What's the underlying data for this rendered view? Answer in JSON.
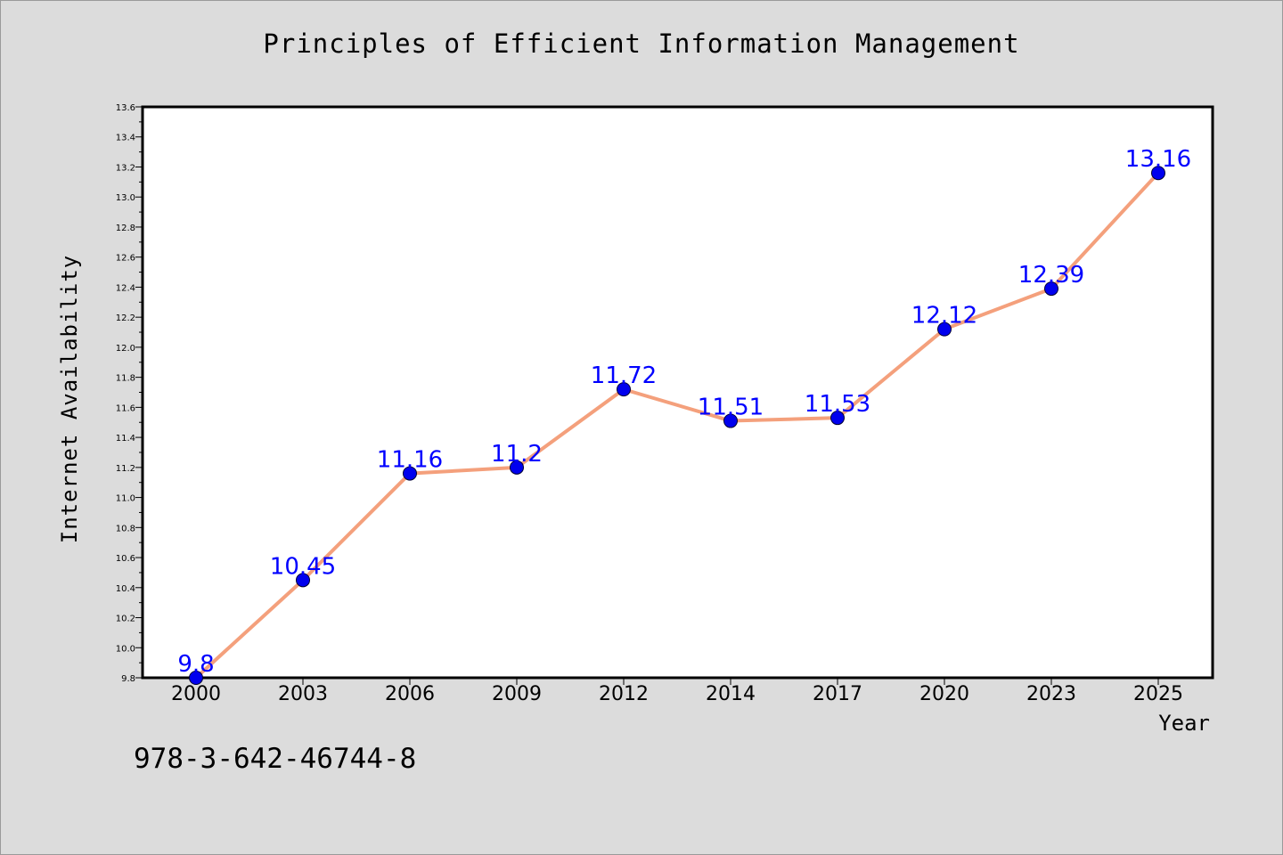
{
  "chart_data": {
    "type": "line",
    "title": "Principles of Efficient Information Management",
    "xlabel": "Year",
    "ylabel": "Internet Availability",
    "categories": [
      "2000",
      "2003",
      "2006",
      "2009",
      "2012",
      "2014",
      "2017",
      "2020",
      "2023",
      "2025"
    ],
    "series": [
      {
        "values": [
          9.8,
          10.45,
          11.16,
          11.2,
          11.72,
          11.51,
          11.53,
          12.12,
          12.39,
          13.16
        ]
      }
    ],
    "data_labels": [
      "9.8",
      "10.45",
      "11.16",
      "11.2",
      "11.72",
      "11.51",
      "11.53",
      "12.12",
      "12.39",
      "13.16"
    ],
    "ylim": [
      9.8,
      13.6
    ],
    "yticks": [
      "9.8",
      "10.0",
      "10.2",
      "10.4",
      "10.6",
      "10.8",
      "11.0",
      "11.2",
      "11.4",
      "11.6",
      "11.8",
      "12.0",
      "12.2",
      "12.4",
      "12.6",
      "12.8",
      "13.0",
      "13.2",
      "13.4",
      "13.6"
    ],
    "grid": false,
    "colors": {
      "line": "#f4a07c",
      "marker": "#0000ee",
      "labels": "#0000ff"
    }
  },
  "footer_text": "978-3-642-46744-8"
}
